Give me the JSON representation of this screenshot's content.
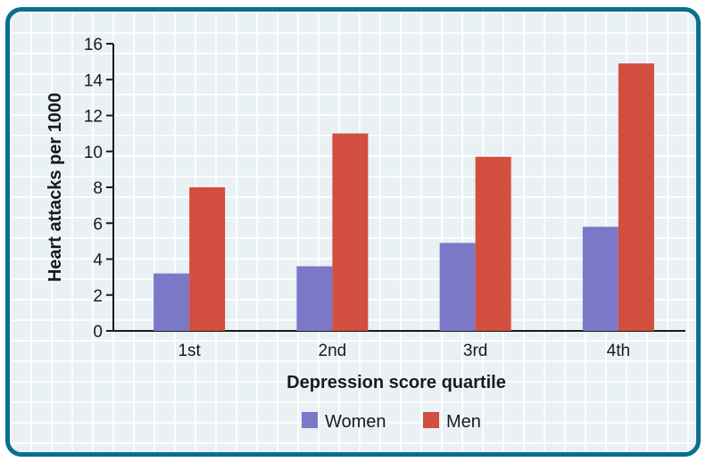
{
  "chart_data": {
    "type": "bar",
    "categories": [
      "1st",
      "2nd",
      "3rd",
      "4th"
    ],
    "series": [
      {
        "name": "Women",
        "values": [
          3.2,
          3.6,
          4.9,
          5.8
        ]
      },
      {
        "name": "Men",
        "values": [
          8.0,
          11.0,
          9.7,
          14.9
        ]
      }
    ],
    "title": "",
    "xlabel": "Depression score quartile",
    "ylabel": "Heart attacks per 1000",
    "ylim": [
      0,
      16
    ],
    "yticks": [
      "0",
      "2",
      "4",
      "6",
      "8",
      "10",
      "12",
      "14",
      "16"
    ],
    "legend_position": "bottom-center",
    "grid": false,
    "colors": {
      "Women": "#7b78c8",
      "Men": "#d24e3f",
      "frame": "#0a6f8e",
      "background": "#e9f1f4"
    }
  }
}
